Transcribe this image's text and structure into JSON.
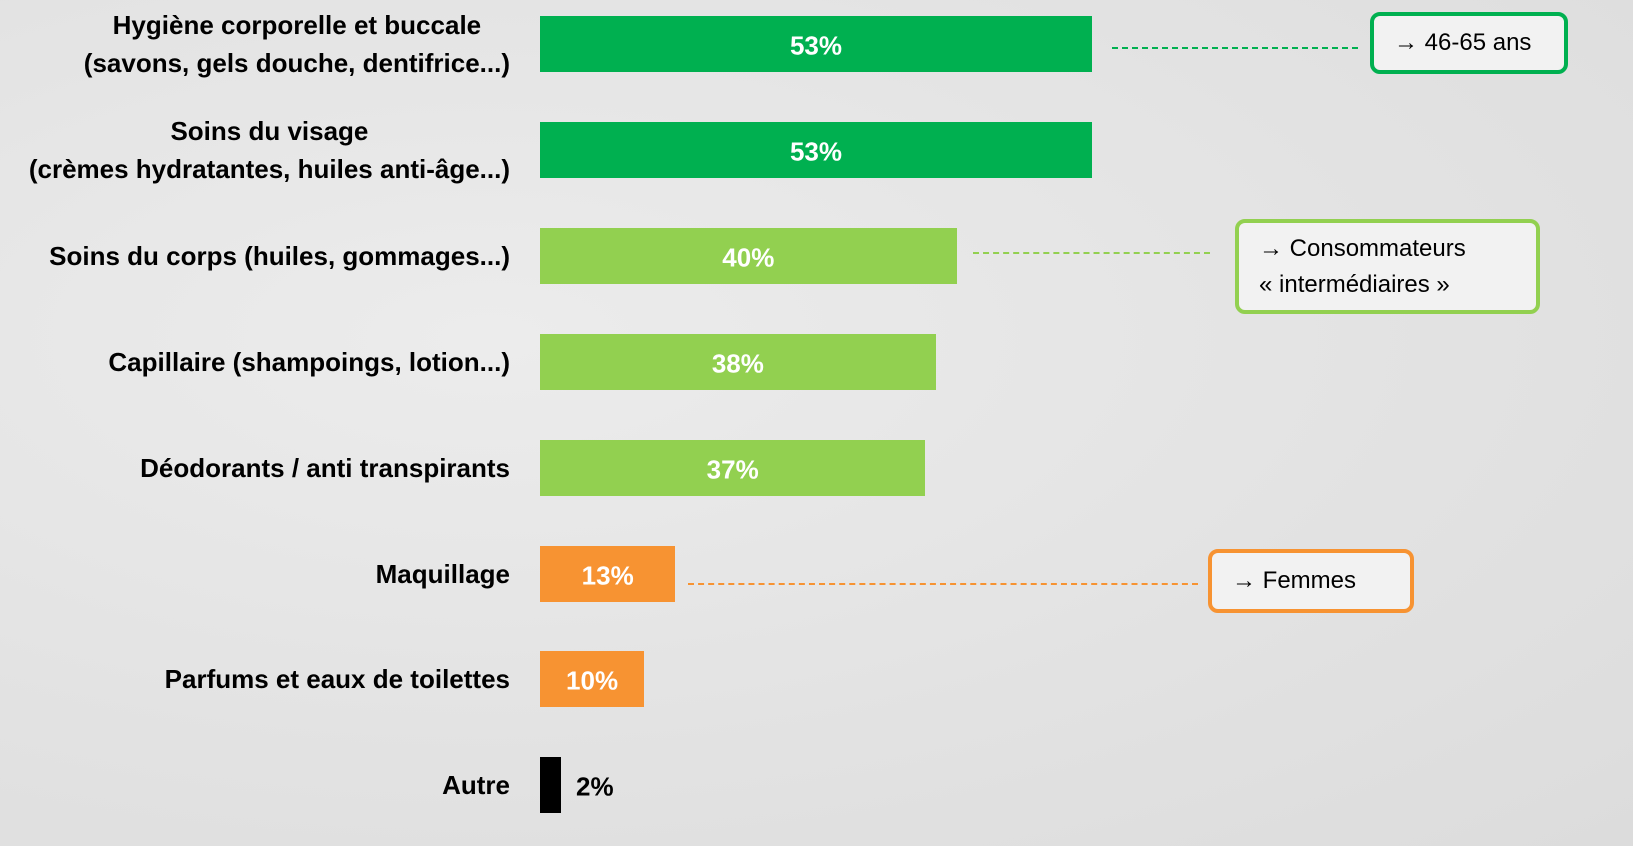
{
  "chart_data": {
    "type": "bar",
    "orientation": "horizontal",
    "categories": [
      "Hygiène corporelle et buccale\n(savons, gels douche, dentifrice...)",
      "Soins du visage\n(crèmes hydratantes, huiles anti-âge...)",
      "Soins du corps (huiles, gommages...)",
      "Capillaire (shampoings, lotion...)",
      "Déodorants / anti transpirants",
      "Maquillage",
      "Parfums et eaux de toilettes",
      "Autre"
    ],
    "values": [
      53,
      53,
      40,
      38,
      37,
      13,
      10,
      2
    ],
    "value_labels": [
      "53%",
      "53%",
      "40%",
      "38%",
      "37%",
      "13%",
      "10%",
      "2%"
    ],
    "colors": [
      "#00b050",
      "#00b050",
      "#92d050",
      "#92d050",
      "#92d050",
      "#f79332",
      "#f79332",
      "#000000"
    ],
    "annotations": [
      {
        "text": "→ 46-65 ans",
        "color": "#00b050"
      },
      {
        "text": "→ Consommateurs\n« intermédiaires »",
        "color": "#92d050"
      },
      {
        "text": "→ Femmes",
        "color": "#f79332"
      }
    ]
  }
}
